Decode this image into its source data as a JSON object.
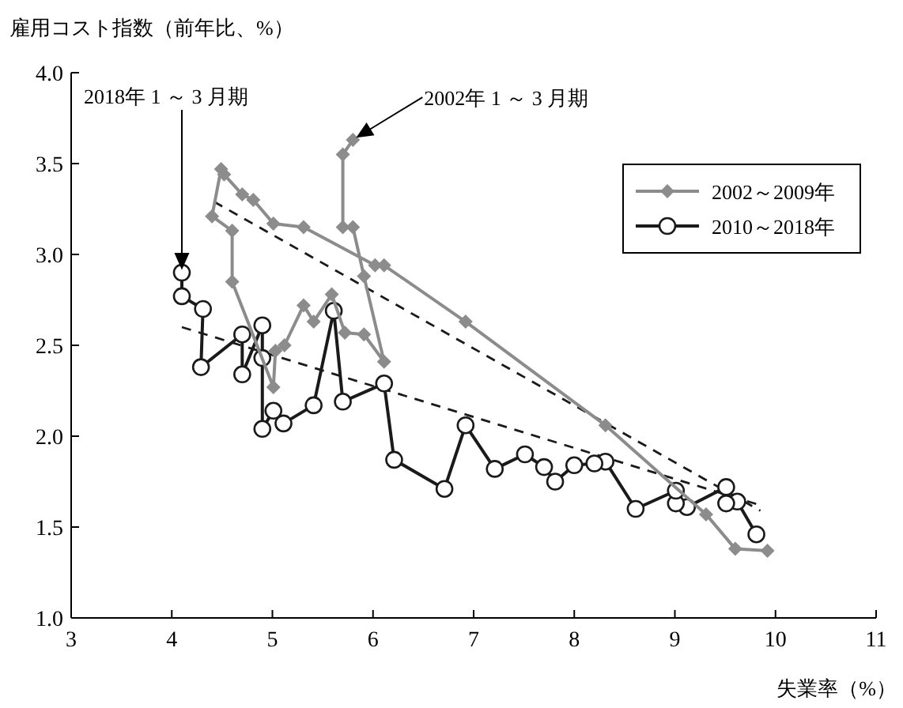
{
  "chart_data": {
    "type": "line",
    "ylabel": "雇用コスト指数（前年比、%）",
    "xlabel": "失業率（%）",
    "xlim": [
      3,
      11
    ],
    "xticks": [
      3,
      4,
      5,
      6,
      7,
      8,
      9,
      10,
      11
    ],
    "ylim": [
      1,
      4
    ],
    "yticks": [
      {
        "value": 1,
        "label": "1.0"
      },
      {
        "value": 1.5,
        "label": "1.5"
      },
      {
        "value": 2,
        "label": "2.0"
      },
      {
        "value": 2.5,
        "label": "2.5"
      },
      {
        "value": 3,
        "label": "3.0"
      },
      {
        "value": 3.5,
        "label": "3.5"
      },
      {
        "value": 4,
        "label": "4.0"
      }
    ],
    "grid": false,
    "legend": "top right",
    "series": [
      {
        "name": "2002～2009年",
        "color": "#8c8c8c",
        "marker": "diamond",
        "line_style": "solid",
        "x": [
          5.8,
          5.7,
          5.7,
          5.8,
          5.91,
          6.11,
          5.91,
          5.72,
          5.59,
          5.41,
          5.31,
          5.12,
          5.03,
          5.01,
          4.6,
          4.6,
          4.4,
          4.49,
          4.52,
          4.7,
          4.81,
          5.01,
          5.31,
          6.02,
          6.11,
          6.92,
          8.31,
          9.31,
          9.6,
          9.92
        ],
        "values": [
          3.63,
          3.55,
          3.15,
          3.15,
          2.88,
          2.41,
          2.56,
          2.57,
          2.78,
          2.63,
          2.72,
          2.5,
          2.47,
          2.27,
          2.85,
          3.13,
          3.21,
          3.47,
          3.44,
          3.33,
          3.3,
          3.17,
          3.15,
          2.94,
          2.94,
          2.63,
          2.06,
          1.57,
          1.38,
          1.37
        ]
      },
      {
        "name": "2010～2018年",
        "color": "#1a1a1a",
        "marker": "circle",
        "line_style": "solid",
        "x": [
          9.81,
          9.62,
          9.51,
          9.51,
          9.12,
          9.01,
          9.01,
          8.61,
          8.31,
          8.2,
          8.0,
          7.81,
          7.7,
          7.51,
          7.21,
          6.92,
          6.71,
          6.21,
          6.11,
          5.7,
          5.61,
          5.41,
          5.11,
          5.01,
          4.9,
          4.9,
          4.9,
          4.7,
          4.7,
          4.29,
          4.31,
          4.1,
          4.1
        ],
        "values": [
          1.46,
          1.64,
          1.63,
          1.72,
          1.61,
          1.63,
          1.7,
          1.6,
          1.86,
          1.85,
          1.84,
          1.75,
          1.83,
          1.9,
          1.82,
          2.06,
          1.71,
          1.87,
          2.29,
          2.19,
          2.69,
          2.17,
          2.07,
          2.14,
          2.04,
          2.43,
          2.61,
          2.34,
          2.56,
          2.38,
          2.7,
          2.77,
          2.9
        ]
      },
      {
        "color": "#1a1a1a",
        "marker": "none",
        "line_style": "dashed",
        "x": [
          4.42,
          9.85
        ],
        "values": [
          3.29,
          1.59
        ]
      },
      {
        "color": "#1a1a1a",
        "marker": "none",
        "line_style": "dashed",
        "x": [
          4.1,
          9.85
        ],
        "values": [
          2.6,
          1.62
        ]
      }
    ],
    "annotations": [
      "2018年 1 ～ 3 月期",
      "2002年 1 ～ 3 月期"
    ]
  }
}
